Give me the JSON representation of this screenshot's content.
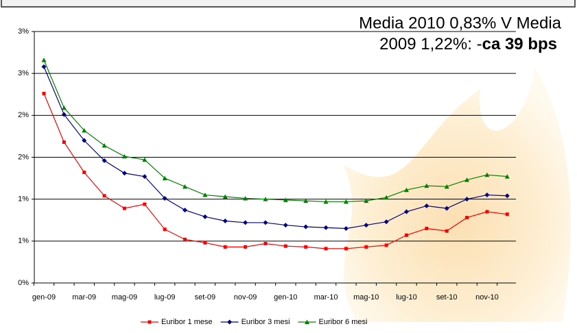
{
  "chart_data": {
    "type": "line",
    "annotation": {
      "text": "Media 2010 0,83% V Media 2009 1,22%: -",
      "bold": "ca 39 bps"
    },
    "categories": [
      "gen-09",
      null,
      "mar-09",
      null,
      "mag-09",
      null,
      "lug-09",
      null,
      "set-09",
      null,
      "nov-09",
      null,
      "gen-10",
      null,
      "mar-10",
      null,
      "mag-10",
      null,
      "lug-10",
      null,
      "set-10",
      null,
      "nov-10",
      null
    ],
    "series": [
      {
        "name": "Euribor 1 mese",
        "color": "#ff0000",
        "marker": "square",
        "values": [
          2.26,
          1.68,
          1.32,
          1.04,
          0.89,
          0.94,
          0.64,
          0.52,
          0.48,
          0.43,
          0.43,
          0.47,
          0.44,
          0.43,
          0.41,
          0.41,
          0.43,
          0.45,
          0.57,
          0.65,
          0.62,
          0.78,
          0.85,
          0.82
        ]
      },
      {
        "name": "Euribor 3 mesi",
        "color": "#000080",
        "marker": "diamond",
        "values": [
          2.58,
          2.01,
          1.7,
          1.46,
          1.31,
          1.27,
          1.01,
          0.87,
          0.79,
          0.74,
          0.72,
          0.72,
          0.69,
          0.67,
          0.66,
          0.65,
          0.69,
          0.73,
          0.85,
          0.92,
          0.89,
          1.0,
          1.05,
          1.04
        ]
      },
      {
        "name": "Euribor 6 mesi",
        "color": "#008000",
        "marker": "triangle",
        "values": [
          2.66,
          2.09,
          1.82,
          1.64,
          1.51,
          1.47,
          1.25,
          1.15,
          1.05,
          1.03,
          1.01,
          1.0,
          0.99,
          0.98,
          0.97,
          0.97,
          0.98,
          1.02,
          1.11,
          1.16,
          1.15,
          1.23,
          1.29,
          1.27
        ]
      }
    ],
    "ylim": [
      0,
      3
    ],
    "yticks": [
      {
        "value": 0,
        "label": "0%"
      },
      {
        "value": 0.5,
        "label": "1%"
      },
      {
        "value": 1,
        "label": "1%"
      },
      {
        "value": 1.5,
        "label": "2%"
      },
      {
        "value": 2,
        "label": "2%"
      },
      {
        "value": 2.5,
        "label": "3%"
      },
      {
        "value": 3,
        "label": "3%"
      }
    ],
    "grid": true,
    "legend": "bottom"
  }
}
